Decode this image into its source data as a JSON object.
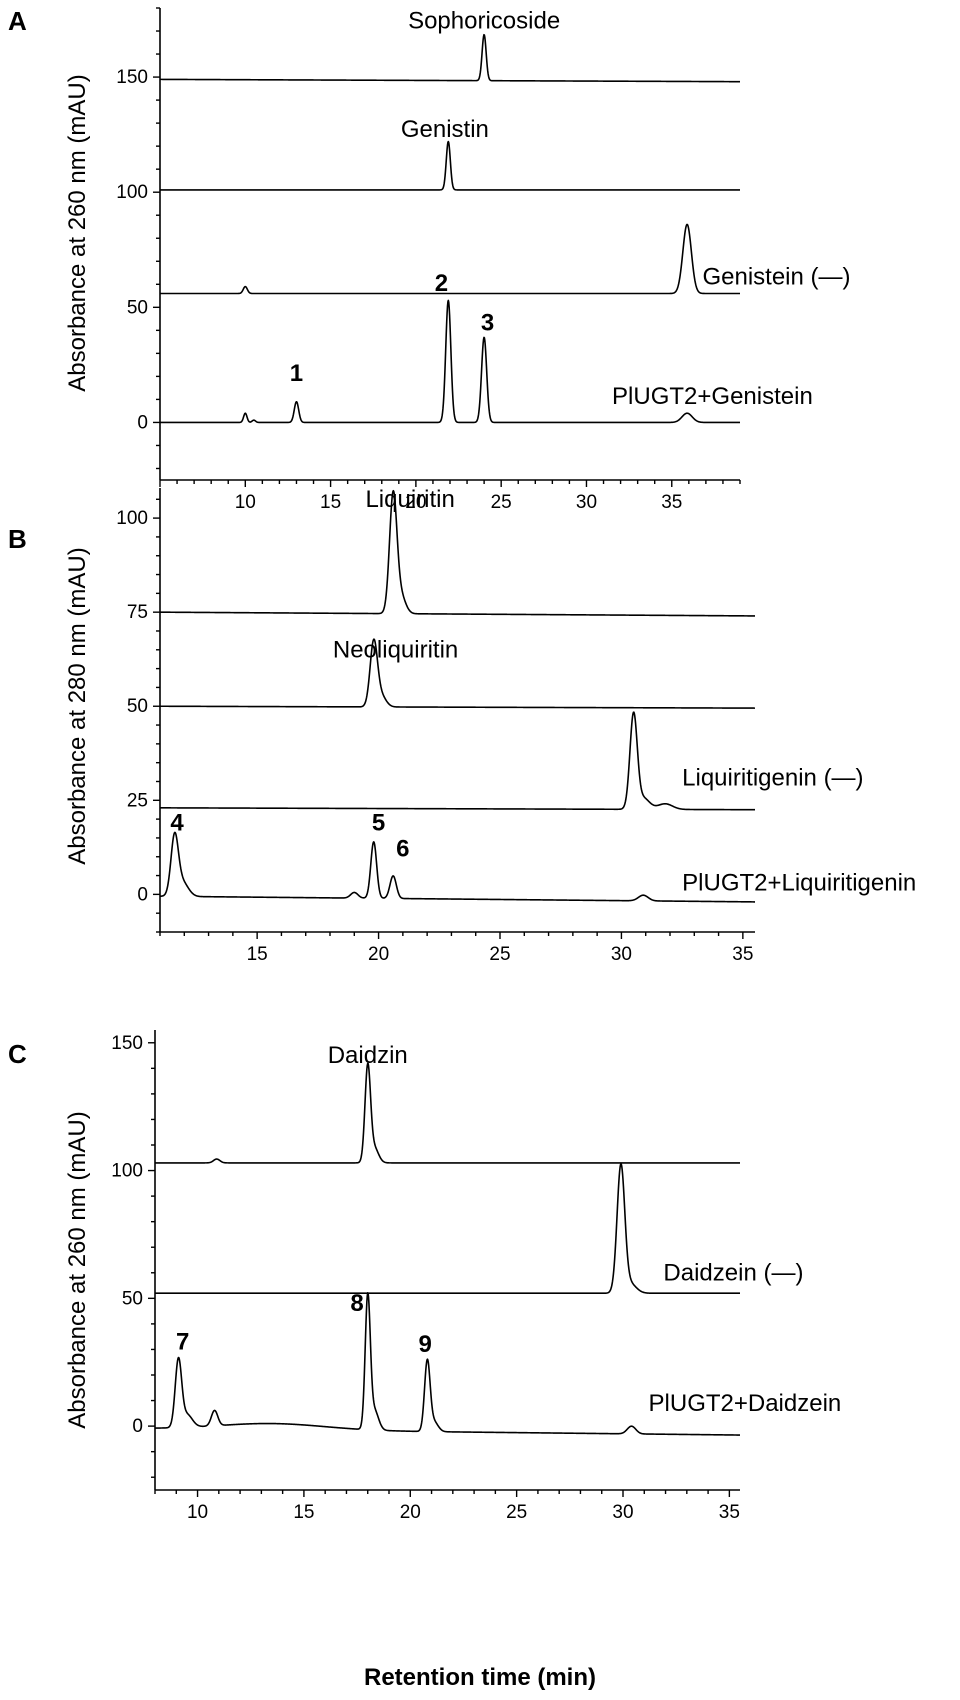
{
  "xlabel": "Retention time (min)",
  "chart_data": [
    {
      "panel": "A",
      "type": "line",
      "ylabel": "Absorbance at 260 nm  (mAU)",
      "xlim": [
        5,
        39
      ],
      "ylim": [
        -25,
        180
      ],
      "xticks": [
        10,
        15,
        20,
        25,
        30,
        35
      ],
      "yticks": [
        0,
        50,
        100,
        150
      ],
      "series": [
        {
          "name": "Sophoricoside",
          "baseline": 149,
          "end_baseline": 148,
          "peaks": [
            {
              "x": 24.0,
              "h": 20,
              "w": 0.12
            }
          ],
          "label_x": 24.0,
          "label_y": 171
        },
        {
          "name": "Genistin",
          "baseline": 101,
          "end_baseline": 101,
          "peaks": [
            {
              "x": 21.9,
              "h": 21,
              "w": 0.12
            }
          ],
          "label_x": 21.7,
          "label_y": 124
        },
        {
          "name": "Genistein (—)",
          "baseline": 56,
          "end_baseline": 56,
          "peaks": [
            {
              "x": 10.0,
              "h": 3,
              "w": 0.12
            },
            {
              "x": 35.9,
              "h": 30,
              "w": 0.25
            }
          ],
          "label_x": 36.8,
          "label_y": 60
        },
        {
          "name": "PlUGT2+Genistein",
          "baseline": 0,
          "end_baseline": 0,
          "peaks": [
            {
              "x": 10.0,
              "h": 4,
              "w": 0.1
            },
            {
              "x": 10.5,
              "h": 1,
              "w": 0.1
            },
            {
              "x": 13.0,
              "h": 9,
              "w": 0.13
            },
            {
              "x": 21.9,
              "h": 53,
              "w": 0.15
            },
            {
              "x": 24.0,
              "h": 37,
              "w": 0.15
            },
            {
              "x": 35.9,
              "h": 4,
              "w": 0.3
            }
          ],
          "label_x": 31.5,
          "label_y": 8
        }
      ],
      "peak_labels": [
        {
          "label": "1",
          "x": 13.0,
          "y": 18
        },
        {
          "label": "2",
          "x": 21.5,
          "y": 57
        },
        {
          "label": "3",
          "x": 24.2,
          "y": 40
        }
      ]
    },
    {
      "panel": "B",
      "type": "line",
      "ylabel": "Absorbance at 280 nm  (mAU)",
      "xlim": [
        11,
        35.5
      ],
      "ylim": [
        -10,
        108
      ],
      "xticks": [
        15,
        20,
        25,
        30,
        35
      ],
      "yticks": [
        0,
        25,
        50,
        75,
        100
      ],
      "series": [
        {
          "name": "Liquiritin",
          "baseline": 75,
          "end_baseline": 74,
          "peaks": [
            {
              "x": 20.6,
              "h": 31,
              "w": 0.15
            },
            {
              "x": 20.9,
              "h": 5,
              "w": 0.2
            }
          ],
          "label_x": 21.3,
          "label_y": 103
        },
        {
          "name": "Neoliquiritin",
          "baseline": 50,
          "end_baseline": 49.5,
          "peaks": [
            {
              "x": 19.8,
              "h": 17,
              "w": 0.15
            },
            {
              "x": 20.1,
              "h": 3,
              "w": 0.2
            }
          ],
          "label_x": 20.7,
          "label_y": 63
        },
        {
          "name": "Liquiritigenin (—)",
          "baseline": 23,
          "end_baseline": 22.5,
          "peaks": [
            {
              "x": 30.5,
              "h": 25,
              "w": 0.15
            },
            {
              "x": 30.9,
              "h": 3,
              "w": 0.25
            },
            {
              "x": 31.8,
              "h": 1.5,
              "w": 0.3
            }
          ],
          "label_x": 32.5,
          "label_y": 29
        },
        {
          "name": "PlUGT2+Liquiritigenin",
          "baseline": -0.5,
          "end_baseline": -2,
          "peaks": [
            {
              "x": 11.6,
              "h": 15,
              "w": 0.15
            },
            {
              "x": 11.9,
              "h": 4,
              "w": 0.25
            },
            {
              "x": 19.0,
              "h": 1.5,
              "w": 0.15
            },
            {
              "x": 19.8,
              "h": 15,
              "w": 0.12
            },
            {
              "x": 20.6,
              "h": 6,
              "w": 0.13
            },
            {
              "x": 30.9,
              "h": 1.5,
              "w": 0.2
            }
          ],
          "label_x": 32.5,
          "label_y": 1
        }
      ],
      "peak_labels": [
        {
          "label": "4",
          "x": 11.7,
          "y": 17
        },
        {
          "label": "5",
          "x": 20.0,
          "y": 17
        },
        {
          "label": "6",
          "x": 21.0,
          "y": 10
        }
      ]
    },
    {
      "panel": "C",
      "type": "line",
      "ylabel": "Absorbance at 260 nm  (mAU)",
      "xlim": [
        8,
        35.5
      ],
      "ylim": [
        -25,
        155
      ],
      "xticks": [
        10,
        15,
        20,
        25,
        30,
        35
      ],
      "yticks": [
        0,
        50,
        100,
        150
      ],
      "series": [
        {
          "name": "Daidzin",
          "baseline": 103,
          "end_baseline": 103,
          "peaks": [
            {
              "x": 10.9,
              "h": 1.5,
              "w": 0.15
            },
            {
              "x": 18.0,
              "h": 37,
              "w": 0.13
            },
            {
              "x": 18.3,
              "h": 6,
              "w": 0.2
            }
          ],
          "label_x": 18.0,
          "label_y": 142
        },
        {
          "name": "Daidzein (—)",
          "baseline": 52,
          "end_baseline": 52,
          "peaks": [
            {
              "x": 29.9,
              "h": 49,
              "w": 0.18
            },
            {
              "x": 30.3,
              "h": 4,
              "w": 0.3
            }
          ],
          "label_x": 31.9,
          "label_y": 57
        },
        {
          "name": "PlUGT2+Daidzein",
          "baseline": -1,
          "end_baseline": -3.5,
          "peaks": [
            {
              "x": 9.1,
              "h": 26,
              "w": 0.15
            },
            {
              "x": 9.5,
              "h": 5,
              "w": 0.25
            },
            {
              "x": 10.8,
              "h": 6,
              "w": 0.15
            },
            {
              "x": 18.0,
              "h": 51,
              "w": 0.12
            },
            {
              "x": 18.3,
              "h": 8,
              "w": 0.2
            },
            {
              "x": 20.8,
              "h": 27,
              "w": 0.13
            },
            {
              "x": 21.1,
              "h": 4,
              "w": 0.2
            },
            {
              "x": 30.4,
              "h": 3,
              "w": 0.2
            }
          ],
          "hump": {
            "x": 13.5,
            "h": 2.5,
            "w": 2.5
          },
          "label_x": 31.2,
          "label_y": 6
        }
      ],
      "peak_labels": [
        {
          "label": "7",
          "x": 9.3,
          "y": 30
        },
        {
          "label": "8",
          "x": 17.5,
          "y": 45
        },
        {
          "label": "9",
          "x": 20.7,
          "y": 29
        }
      ]
    }
  ]
}
